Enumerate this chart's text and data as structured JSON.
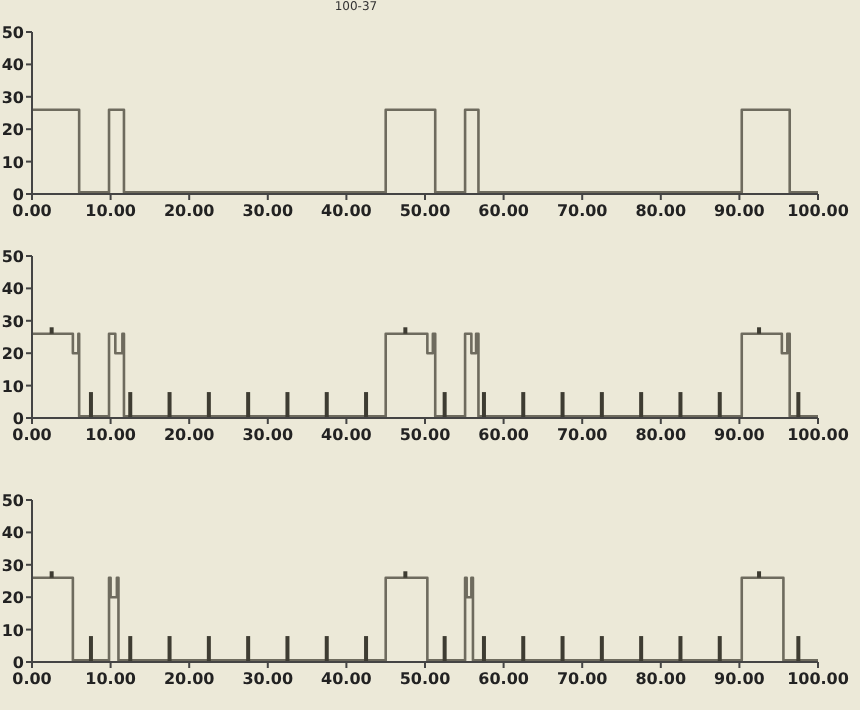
{
  "chart_data": [
    {
      "type": "step",
      "title": "100-37",
      "xlim": [
        0,
        100
      ],
      "ylim": [
        0,
        50
      ],
      "xticks": [
        {
          "value": 0,
          "label": "0.00"
        },
        {
          "value": 10,
          "label": "10.00"
        },
        {
          "value": 20,
          "label": "20.00"
        },
        {
          "value": 30,
          "label": "30.00"
        },
        {
          "value": 40,
          "label": "40.00"
        },
        {
          "value": 50,
          "label": "50.00"
        },
        {
          "value": 60,
          "label": "60.00"
        },
        {
          "value": 70,
          "label": "70.00"
        },
        {
          "value": 80,
          "label": "80.00"
        },
        {
          "value": 90,
          "label": "90.00"
        },
        {
          "value": 100,
          "label": "100.00"
        }
      ],
      "yticks": [
        0,
        10,
        20,
        30,
        40,
        50
      ],
      "series": [
        {
          "color": "#6e6b5e",
          "x": [
            0,
            6.0,
            9.8,
            11.7,
            45.0,
            51.3,
            55.1,
            56.8,
            90.3,
            96.4,
            100
          ],
          "values": [
            26,
            0.5,
            26,
            0.5,
            26,
            0.5,
            26,
            0.5,
            26,
            0.5,
            0.5
          ]
        }
      ]
    },
    {
      "type": "step",
      "xlim": [
        0,
        100
      ],
      "ylim": [
        0,
        50
      ],
      "xticks": [
        {
          "value": 0,
          "label": "0.00"
        },
        {
          "value": 10,
          "label": "10.00"
        },
        {
          "value": 20,
          "label": "20.00"
        },
        {
          "value": 30,
          "label": "30.00"
        },
        {
          "value": 40,
          "label": "40.00"
        },
        {
          "value": 50,
          "label": "50.00"
        },
        {
          "value": 60,
          "label": "60.00"
        },
        {
          "value": 70,
          "label": "70.00"
        },
        {
          "value": 80,
          "label": "80.00"
        },
        {
          "value": 90,
          "label": "90.00"
        },
        {
          "value": 100,
          "label": "100.00"
        }
      ],
      "yticks": [
        0,
        10,
        20,
        30,
        40,
        50
      ],
      "series": [
        {
          "color": "#6e6b5e",
          "x": [
            0,
            5.2,
            5.9,
            6.0,
            9.8,
            10.6,
            11.5,
            11.7,
            45.0,
            50.3,
            51.0,
            51.3,
            55.1,
            55.9,
            56.5,
            56.8,
            90.3,
            95.4,
            96.1,
            96.4,
            100
          ],
          "values": [
            26,
            20,
            26,
            0.5,
            26,
            20,
            26,
            0.5,
            26,
            20,
            26,
            0.5,
            26,
            20,
            26,
            0.5,
            26,
            20,
            26,
            0.5,
            0.5
          ]
        },
        {
          "type": "bar",
          "color": "#3e3c32",
          "x": [
            2.5,
            7.5,
            12.5,
            17.5,
            22.5,
            27.5,
            32.5,
            37.5,
            42.5,
            47.5,
            52.5,
            57.5,
            62.5,
            67.5,
            72.5,
            77.5,
            82.5,
            87.5,
            92.5,
            97.5
          ],
          "base": [
            26,
            0,
            0,
            0,
            0,
            0,
            0,
            0,
            0,
            26,
            0,
            0,
            0,
            0,
            0,
            0,
            0,
            0,
            26,
            0
          ],
          "values": [
            2,
            8,
            8,
            8,
            8,
            8,
            8,
            8,
            8,
            2,
            8,
            8,
            8,
            8,
            8,
            8,
            8,
            8,
            2,
            8
          ]
        }
      ]
    },
    {
      "type": "step",
      "xlim": [
        0,
        100
      ],
      "ylim": [
        0,
        50
      ],
      "xticks": [
        {
          "value": 0,
          "label": "0.00"
        },
        {
          "value": 10,
          "label": "10.00"
        },
        {
          "value": 20,
          "label": "20.00"
        },
        {
          "value": 30,
          "label": "30.00"
        },
        {
          "value": 40,
          "label": "40.00"
        },
        {
          "value": 50,
          "label": "50.00"
        },
        {
          "value": 60,
          "label": "60.00"
        },
        {
          "value": 70,
          "label": "70.00"
        },
        {
          "value": 80,
          "label": "80.00"
        },
        {
          "value": 90,
          "label": "90.00"
        },
        {
          "value": 100,
          "label": "100.00"
        }
      ],
      "yticks": [
        0,
        10,
        20,
        30,
        40,
        50
      ],
      "series": [
        {
          "color": "#6e6b5e",
          "x": [
            0,
            5.2,
            9.8,
            10.0,
            10.8,
            11.0,
            45.0,
            50.3,
            55.1,
            55.3,
            55.9,
            56.1,
            90.3,
            95.6,
            100
          ],
          "values": [
            26,
            0.5,
            26,
            20,
            26,
            0.5,
            26,
            0.5,
            26,
            20,
            26,
            0.5,
            26,
            0.5,
            0.5
          ]
        },
        {
          "type": "bar",
          "color": "#3e3c32",
          "x": [
            2.5,
            7.5,
            12.5,
            17.5,
            22.5,
            27.5,
            32.5,
            37.5,
            42.5,
            47.5,
            52.5,
            57.5,
            62.5,
            67.5,
            72.5,
            77.5,
            82.5,
            87.5,
            92.5,
            97.5
          ],
          "base": [
            26,
            0,
            0,
            0,
            0,
            0,
            0,
            0,
            0,
            26,
            0,
            0,
            0,
            0,
            0,
            0,
            0,
            0,
            26,
            0
          ],
          "values": [
            2,
            8,
            8,
            8,
            8,
            8,
            8,
            8,
            8,
            2,
            8,
            8,
            8,
            8,
            8,
            8,
            8,
            8,
            2,
            8
          ]
        }
      ]
    }
  ]
}
